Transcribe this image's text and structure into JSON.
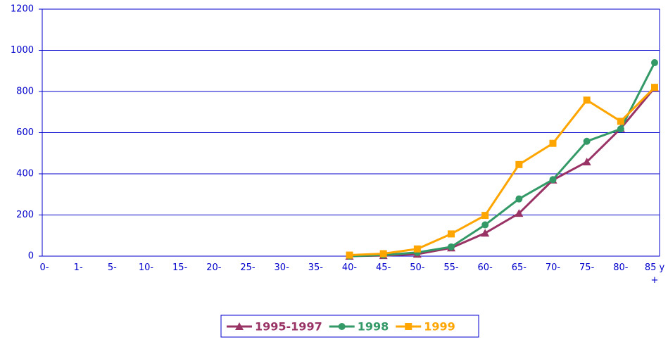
{
  "chart_data": {
    "type": "line",
    "categories": [
      "0-",
      "1-",
      "5-",
      "10-",
      "15-",
      "20-",
      "25-",
      "30-",
      "35-",
      "40-",
      "45-",
      "50-",
      "55-",
      "60-",
      "65-",
      "70-",
      "75-",
      "80-",
      "85 y +"
    ],
    "series": [
      {
        "name": "1995-1997",
        "color": "#993366",
        "marker": "triangle",
        "values": [
          null,
          null,
          null,
          null,
          null,
          null,
          null,
          null,
          null,
          0,
          3,
          10,
          40,
          112,
          208,
          370,
          458,
          620,
          818
        ]
      },
      {
        "name": "1998",
        "color": "#339966",
        "marker": "circle",
        "values": [
          null,
          null,
          null,
          null,
          null,
          null,
          null,
          null,
          null,
          0,
          5,
          18,
          45,
          152,
          278,
          372,
          558,
          618,
          940
        ]
      },
      {
        "name": "1999",
        "color": "#ffa500",
        "marker": "square",
        "values": [
          null,
          null,
          null,
          null,
          null,
          null,
          null,
          null,
          null,
          5,
          12,
          35,
          108,
          198,
          445,
          548,
          758,
          655,
          820
        ]
      }
    ],
    "ylim": [
      0,
      1200
    ],
    "yticks": [
      0,
      200,
      400,
      600,
      800,
      1000,
      1200
    ],
    "grid": true,
    "legend": "bottom"
  }
}
